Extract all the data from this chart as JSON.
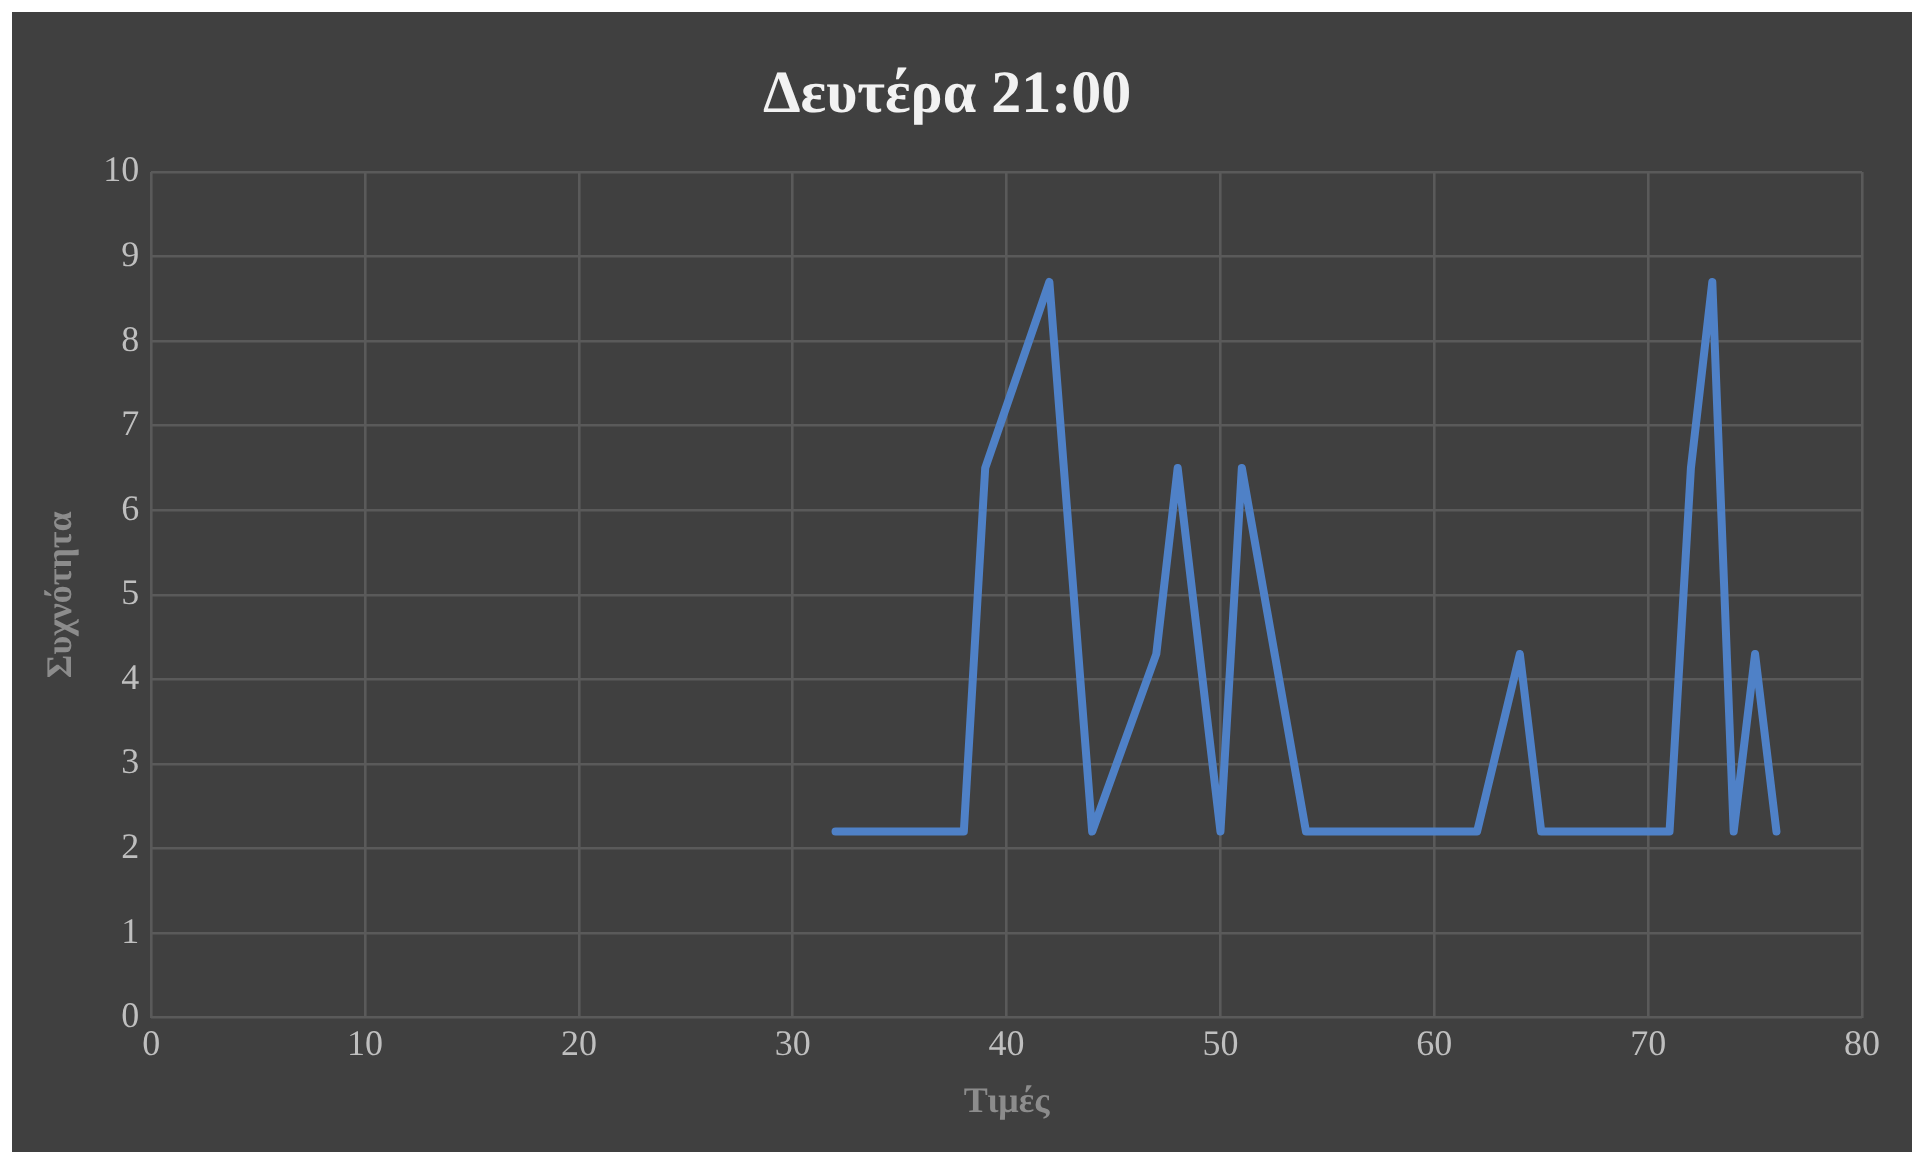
{
  "chart_data": {
    "type": "line",
    "title": "Δευτέρα 21:00",
    "xlabel": "Τιμές",
    "ylabel": "Συχνότητα",
    "x": [
      32,
      38,
      39,
      42,
      44,
      47,
      48,
      50,
      51,
      54,
      62,
      64,
      65,
      71,
      72,
      73,
      74,
      75,
      76
    ],
    "series": [
      {
        "color": "#4f81c7",
        "values": [
          2.2,
          2.2,
          6.5,
          8.7,
          2.2,
          4.3,
          6.5,
          2.2,
          6.5,
          2.2,
          2.2,
          4.3,
          2.2,
          2.2,
          6.5,
          8.7,
          2.2,
          4.3,
          2.2
        ]
      }
    ],
    "xlim": [
      0,
      80
    ],
    "xticks": [
      0,
      10,
      20,
      30,
      40,
      50,
      60,
      70,
      80
    ],
    "ylim": [
      0,
      10
    ],
    "yticks": [
      0,
      1,
      2,
      3,
      4,
      5,
      6,
      7,
      8,
      9,
      10
    ],
    "grid": true,
    "legend": false,
    "marker": "none",
    "line_style": "solid"
  }
}
